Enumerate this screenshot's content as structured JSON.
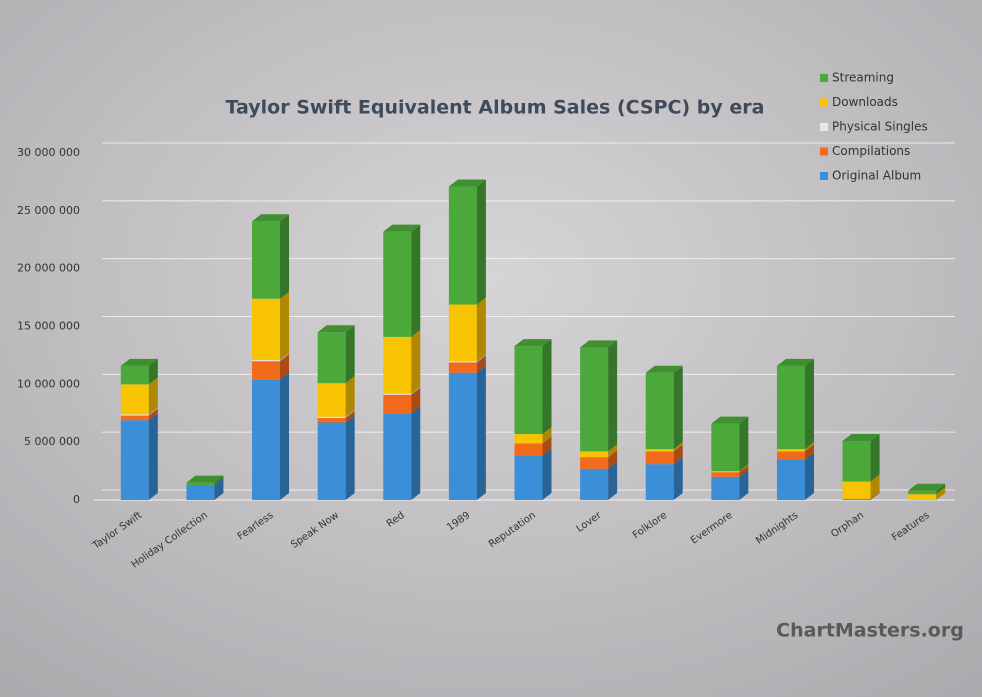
{
  "chart_data": {
    "type": "bar",
    "stacked": true,
    "three_d": true,
    "title": "Taylor Swift Equivalent Album Sales (CSPC) by era",
    "watermark": "ChartMasters.org",
    "categories": [
      "Taylor Swift",
      "Holiday Collection",
      "Fearless",
      "Speak Now",
      "Red",
      "1989",
      "Reputation",
      "Lover",
      "Folklore",
      "Evermore",
      "Midnights",
      "Orphan",
      "Features"
    ],
    "series": [
      {
        "name": "Original Album",
        "color": "#3b8fd9",
        "values": [
          6900000,
          1300000,
          10400000,
          6700000,
          7500000,
          11000000,
          3800000,
          2700000,
          3100000,
          2000000,
          3500000,
          0,
          0
        ]
      },
      {
        "name": "Compilations",
        "color": "#f26b1d",
        "values": [
          400000,
          0,
          1600000,
          400000,
          1600000,
          900000,
          1100000,
          1000000,
          1100000,
          400000,
          700000,
          100000,
          0
        ]
      },
      {
        "name": "Physical Singles",
        "color": "#e6e6e6",
        "values": [
          100000,
          0,
          100000,
          100000,
          100000,
          100000,
          0,
          0,
          0,
          0,
          0,
          0,
          0
        ]
      },
      {
        "name": "Downloads",
        "color": "#f8c300",
        "values": [
          2600000,
          0,
          5300000,
          2900000,
          4900000,
          4900000,
          800000,
          500000,
          200000,
          100000,
          200000,
          1500000,
          500000
        ]
      },
      {
        "name": "Streaming",
        "color": "#4ba83a",
        "values": [
          1600000,
          200000,
          6700000,
          4400000,
          9100000,
          10200000,
          7600000,
          9000000,
          6600000,
          4100000,
          7200000,
          3500000,
          300000
        ]
      }
    ],
    "ylim": [
      0,
      30000000
    ],
    "yticks": [
      {
        "value": 0,
        "label": "0"
      },
      {
        "value": 5000000,
        "label": "5 000 000"
      },
      {
        "value": 10000000,
        "label": "10 000 000"
      },
      {
        "value": 15000000,
        "label": "15 000 000"
      },
      {
        "value": 20000000,
        "label": "20 000 000"
      },
      {
        "value": 25000000,
        "label": "25 000 000"
      },
      {
        "value": 30000000,
        "label": "30 000 000"
      }
    ],
    "grid": true,
    "legend": "top-right"
  }
}
